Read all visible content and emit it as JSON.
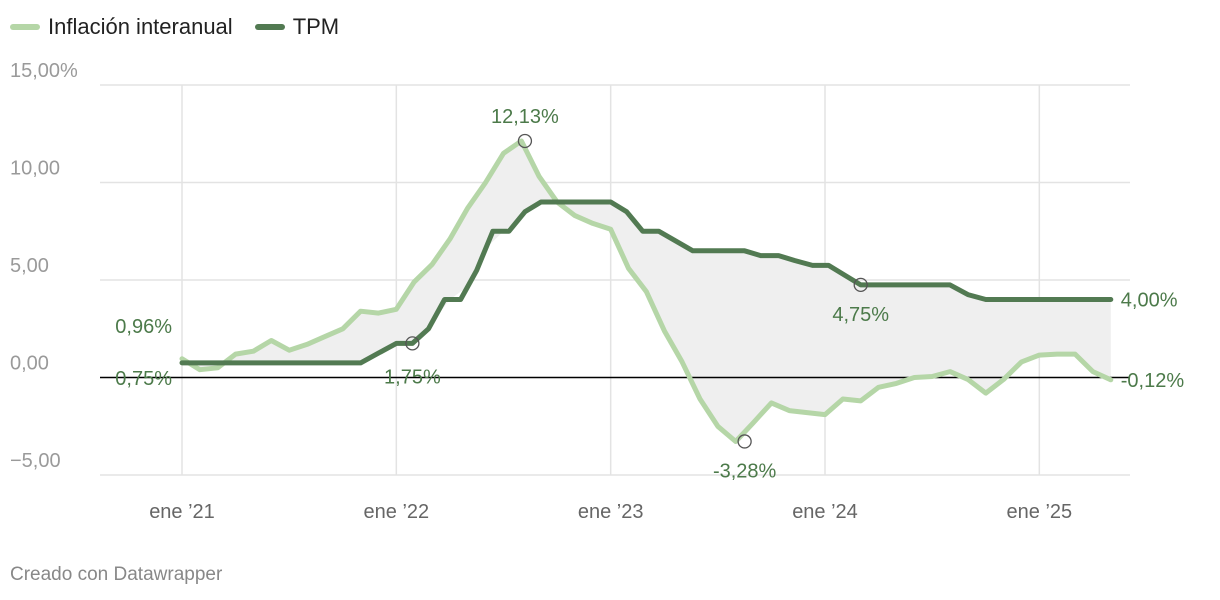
{
  "colors": {
    "inflation": "#b5d6a7",
    "tpm": "#527a52",
    "fill": "#efefef",
    "grid": "#e3e3e3",
    "zero": "#000000",
    "annotation": "#4c7a4a"
  },
  "legend": [
    {
      "label": "Inflación interanual",
      "color": "#b5d6a7"
    },
    {
      "label": "TPM",
      "color": "#527a52"
    }
  ],
  "footer": "Creado con Datawrapper",
  "chart_data": {
    "type": "line",
    "title": "",
    "xlabel": "",
    "ylabel": "",
    "ylim": [
      -5,
      15
    ],
    "yticks": [
      {
        "value": 15,
        "label": "15,00%"
      },
      {
        "value": 10,
        "label": "10,00"
      },
      {
        "value": 5,
        "label": "5,00"
      },
      {
        "value": 0,
        "label": "0,00"
      },
      {
        "value": -5,
        "label": "−5,00"
      }
    ],
    "xrange": [
      0,
      52.5
    ],
    "xticks": [
      {
        "value": 0,
        "label": "ene ’21"
      },
      {
        "value": 12,
        "label": "ene ’22"
      },
      {
        "value": 24,
        "label": "ene ’23"
      },
      {
        "value": 36,
        "label": "ene ’24"
      },
      {
        "value": 48,
        "label": "ene ’25"
      }
    ],
    "series": [
      {
        "name": "Inflación interanual",
        "x": [
          0,
          1,
          2,
          3,
          4,
          5,
          6,
          7,
          8,
          9,
          10,
          11,
          12,
          13,
          14,
          15,
          16,
          17,
          18,
          19,
          20,
          21,
          22,
          23,
          24,
          25,
          26,
          27,
          28,
          29,
          30,
          31,
          32,
          33,
          34,
          35,
          36,
          37,
          38,
          39,
          40,
          41,
          42,
          43,
          44,
          45,
          46,
          47,
          48,
          49,
          50,
          51,
          52
        ],
        "values": [
          0.96,
          0.4,
          0.5,
          1.2,
          1.35,
          1.9,
          1.4,
          1.7,
          2.1,
          2.5,
          3.4,
          3.3,
          3.5,
          4.9,
          5.8,
          7.1,
          8.7,
          10.0,
          11.5,
          12.13,
          10.3,
          9.0,
          8.3,
          7.9,
          7.6,
          5.6,
          4.4,
          2.4,
          0.8,
          -1.1,
          -2.5,
          -3.28,
          -2.3,
          -1.3,
          -1.7,
          -1.8,
          -1.9,
          -1.1,
          -1.2,
          -0.5,
          -0.3,
          0.0,
          0.05,
          0.3,
          -0.1,
          -0.8,
          -0.1,
          0.8,
          1.15,
          1.2,
          1.2,
          0.3,
          -0.12
        ]
      },
      {
        "name": "TPM",
        "x": [
          0,
          10,
          11,
          12,
          12.9,
          13.8,
          14.7,
          15.6,
          16.5,
          17.4,
          18.3,
          19.2,
          20.1,
          21,
          21.8,
          23,
          24,
          24.9,
          25.8,
          26.7,
          28.6,
          29.6,
          30.5,
          31.5,
          32.4,
          33.4,
          34.3,
          35.3,
          36.2,
          37.1,
          38,
          39,
          40,
          41,
          42,
          43,
          44,
          45,
          46,
          47,
          48,
          49,
          50,
          51,
          52
        ],
        "values": [
          0.75,
          0.75,
          1.25,
          1.75,
          1.75,
          2.5,
          4.0,
          4.0,
          5.5,
          7.5,
          7.5,
          8.5,
          9.0,
          9.0,
          9.0,
          9.0,
          9.0,
          8.5,
          7.5,
          7.5,
          6.5,
          6.5,
          6.5,
          6.5,
          6.25,
          6.25,
          6.0,
          5.75,
          5.75,
          5.25,
          4.75,
          4.75,
          4.75,
          4.75,
          4.75,
          4.75,
          4.25,
          4.0,
          4.0,
          4.0,
          4.0,
          4.0,
          4.0,
          4.0,
          4.0
        ]
      }
    ],
    "annotations": [
      {
        "x": 0,
        "y": 0.96,
        "text": "0,96%",
        "series": "Inflación interanual",
        "marker": false,
        "anchor": "end",
        "dx": -10,
        "dy": -26
      },
      {
        "x": 0,
        "y": 0.75,
        "text": "0,75%",
        "series": "TPM",
        "marker": false,
        "anchor": "end",
        "dx": -10,
        "dy": 22
      },
      {
        "x": 12.9,
        "y": 1.75,
        "text": "1,75%",
        "series": "TPM",
        "marker": true,
        "anchor": "middle",
        "dx": 0,
        "dy": 40
      },
      {
        "x": 19.2,
        "y": 12.13,
        "text": "12,13%",
        "series": "Inflación interanual",
        "marker": true,
        "anchor": "middle",
        "dx": 0,
        "dy": -18
      },
      {
        "x": 31.5,
        "y": -3.28,
        "text": "-3,28%",
        "series": "Inflación interanual",
        "marker": true,
        "anchor": "middle",
        "dx": 0,
        "dy": 36
      },
      {
        "x": 38,
        "y": 4.75,
        "text": "4,75%",
        "series": "TPM",
        "marker": true,
        "anchor": "middle",
        "dx": 0,
        "dy": 36
      },
      {
        "x": 52,
        "y": 4.0,
        "text": "4,00%",
        "series": "TPM",
        "marker": false,
        "anchor": "start",
        "dx": 10,
        "dy": 7
      },
      {
        "x": 52,
        "y": -0.12,
        "text": "-0,12%",
        "series": "Inflación interanual",
        "marker": false,
        "anchor": "start",
        "dx": 10,
        "dy": 7
      }
    ]
  }
}
